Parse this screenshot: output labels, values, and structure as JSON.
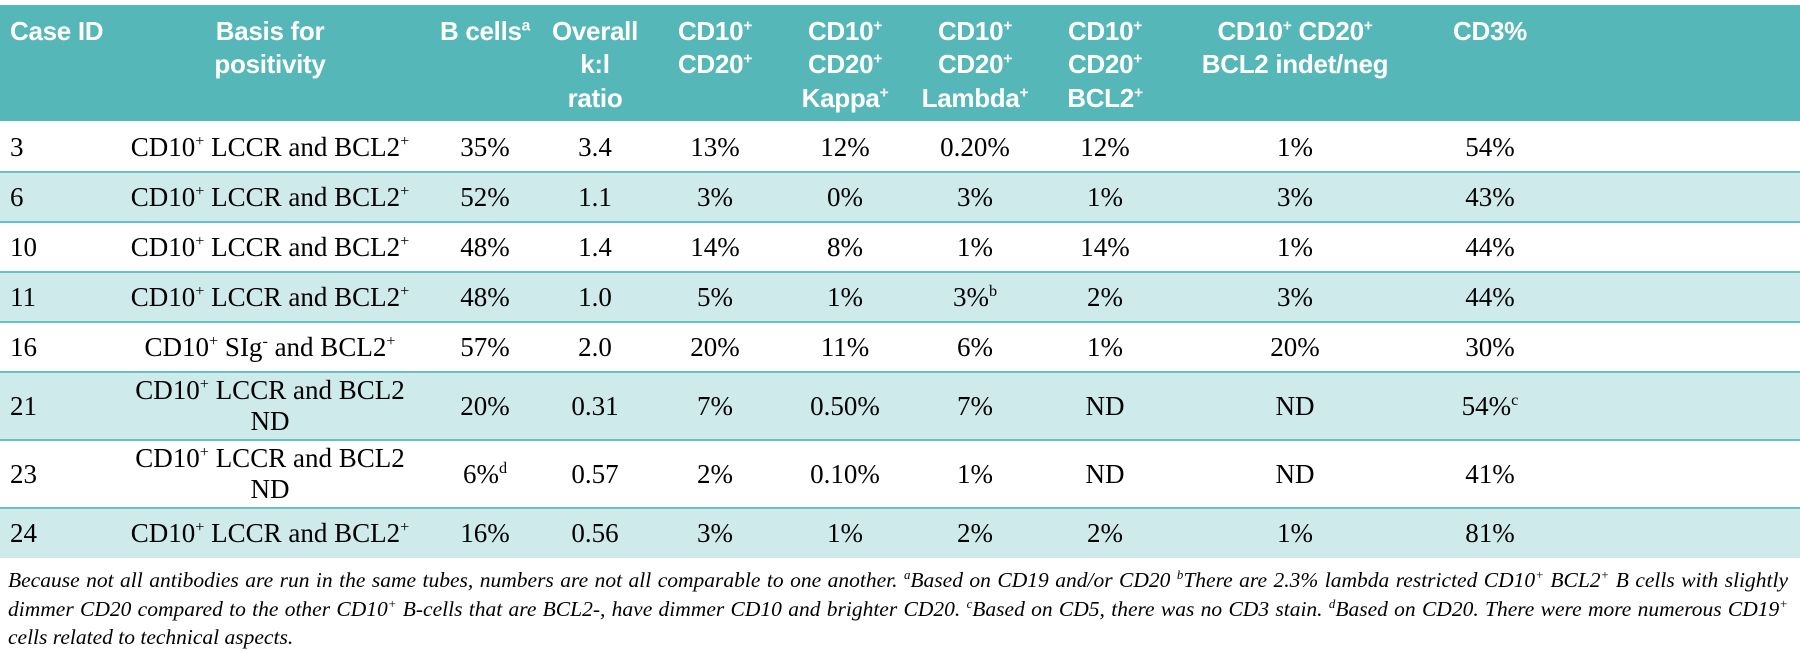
{
  "colors": {
    "header_bg": "#56b7b9",
    "header_text": "#ffffff",
    "stripe_bg": "#cfeaea",
    "row_line": "#66c2c3",
    "body_text": "#000000"
  },
  "table": {
    "columns": [
      "Case ID",
      "Basis for\npositivity",
      "B cells^a",
      "Overall k:l\nratio",
      "CD10^+\nCD20^+",
      "CD10^+\nCD20^+\nKappa^+",
      "CD10^+\nCD20^+\nLambda^+",
      "CD10^+\nCD20^+\nBCL2^+",
      "CD10^+ CD20^+\nBCL2 indet/neg",
      "CD3%"
    ],
    "rows": [
      {
        "cells": [
          "3",
          "CD10^+ LCCR and BCL2^+",
          "35%",
          "3.4",
          "13%",
          "12%",
          "0.20%",
          "12%",
          "1%",
          "54%"
        ]
      },
      {
        "cells": [
          "6",
          "CD10^+ LCCR and BCL2^+",
          "52%",
          "1.1",
          "3%",
          "0%",
          "3%",
          "1%",
          "3%",
          "43%"
        ]
      },
      {
        "cells": [
          "10",
          "CD10^+ LCCR and BCL2^+",
          "48%",
          "1.4",
          "14%",
          "8%",
          "1%",
          "14%",
          "1%",
          "44%"
        ]
      },
      {
        "cells": [
          "11",
          "CD10^+ LCCR and BCL2^+",
          "48%",
          "1.0",
          "5%",
          "1%",
          "3%^b",
          "2%",
          "3%",
          "44%"
        ]
      },
      {
        "cells": [
          "16",
          "CD10^+ SIg^- and BCL2^+",
          "57%",
          "2.0",
          "20%",
          "11%",
          "6%",
          "1%",
          "20%",
          "30%"
        ]
      },
      {
        "cells": [
          "21",
          "CD10^+ LCCR and BCL2 ND",
          "20%",
          "0.31",
          "7%",
          "0.50%",
          "7%",
          "ND",
          "ND",
          "54%^c"
        ]
      },
      {
        "cells": [
          "23",
          "CD10^+ LCCR and BCL2 ND",
          "6%^d",
          "0.57",
          "2%",
          "0.10%",
          "1%",
          "ND",
          "ND",
          "41%"
        ]
      },
      {
        "cells": [
          "24",
          "CD10^+ LCCR and BCL2^+",
          "16%",
          "0.56",
          "3%",
          "1%",
          "2%",
          "2%",
          "1%",
          "81%"
        ]
      }
    ]
  },
  "footnotes": {
    "text": "Because not all antibodies are run in the same tubes, numbers are not all comparable to one another. ^aBased on CD19 and/or CD20 ^bThere are 2.3% lambda restricted CD10^+ BCL2^+ B cells with slightly dimmer CD20 compared to the other CD10^+ B-cells that are BCL2-, have dimmer CD10 and brighter CD20. ^cBased on CD5, there was no CD3 stain. ^dBased on CD20. There were more numerous CD19^+ cells related to technical aspects."
  }
}
